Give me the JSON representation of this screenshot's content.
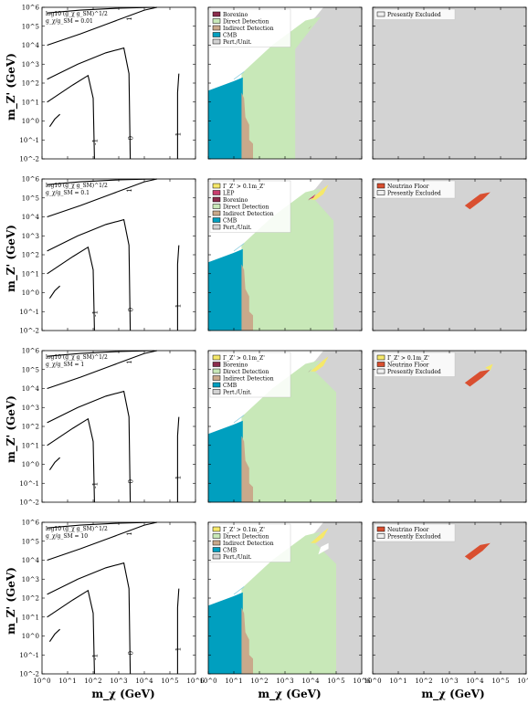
{
  "xlabel": "m_χ (GeV)",
  "ylabel": "m_Z' (GeV)",
  "x_ticks": [
    "10^0",
    "10^1",
    "10^2",
    "10^3",
    "10^4",
    "10^5",
    "10^6"
  ],
  "y_ticks": [
    "10^-2",
    "10^-1",
    "10^0",
    "10^1",
    "10^2",
    "10^3",
    "10^4",
    "10^5",
    "10^6"
  ],
  "colors": {
    "borexino": "#8b2c4c",
    "direct_detection": "#c8e8b8",
    "indirect_detection": "#c9a98b",
    "cmb": "#009fbf",
    "pert_unit": "#d3d3d3",
    "lep": "#c83c6e",
    "width": "#f5e86a",
    "neutrino_floor": "#d94f30",
    "presently_excluded": "#d3d3d3"
  },
  "chart_data": {
    "type": "contour+area",
    "x_scale": "log",
    "y_scale": "log",
    "xlim": [
      1,
      1000000
    ],
    "ylim": [
      0.01,
      1000000
    ],
    "rows": [
      {
        "ratio_label": "g_χ/g_SM = 0.01",
        "contour_header": "log10 (g_χ g_SM)^1/2",
        "contour_levels": [
          "1",
          "0",
          "-1",
          "1"
        ],
        "constraint_legend": [
          "Borexino",
          "Direct Detection",
          "Indirect Detection",
          "CMB",
          "Pert./Unit."
        ],
        "future_legend": [
          "Presently Excluded"
        ]
      },
      {
        "ratio_label": "g_χ/g_SM = 0.1",
        "contour_header": "log10 (g_χ g_SM)^1/2",
        "contour_levels": [
          "1",
          "0",
          "-1",
          "1"
        ],
        "constraint_legend": [
          "Γ_Z' > 0.1m_Z'",
          "LEP",
          "Borexino",
          "Direct Detection",
          "Indirect Detection",
          "CMB",
          "Pert./Unit."
        ],
        "future_legend": [
          "Neutrino Floor",
          "Presently Excluded"
        ]
      },
      {
        "ratio_label": "g_χ/g_SM = 1",
        "contour_header": "log10 (g_χ g_SM)^1/2",
        "contour_levels": [
          "1",
          "0",
          "-1",
          "1"
        ],
        "constraint_legend": [
          "Γ_Z' > 0.1m_Z'",
          "Borexino",
          "Direct Detection",
          "Indirect Detection",
          "CMB",
          "Pert./Unit."
        ],
        "future_legend": [
          "Γ_Z' > 0.1m_Z'",
          "Neutrino Floor",
          "Presently Excluded"
        ]
      },
      {
        "ratio_label": "g_χ/g_SM = 10",
        "contour_header": "log10 (g_χ g_SM)^1/2",
        "contour_levels": [
          "1",
          "0",
          "-1",
          "1"
        ],
        "constraint_legend": [
          "Γ_Z' > 0.1m_Z'",
          "Direct Detection",
          "Indirect Detection",
          "CMB",
          "Pert./Unit."
        ],
        "future_legend": [
          "Neutrino Floor",
          "Presently Excluded"
        ]
      }
    ]
  }
}
